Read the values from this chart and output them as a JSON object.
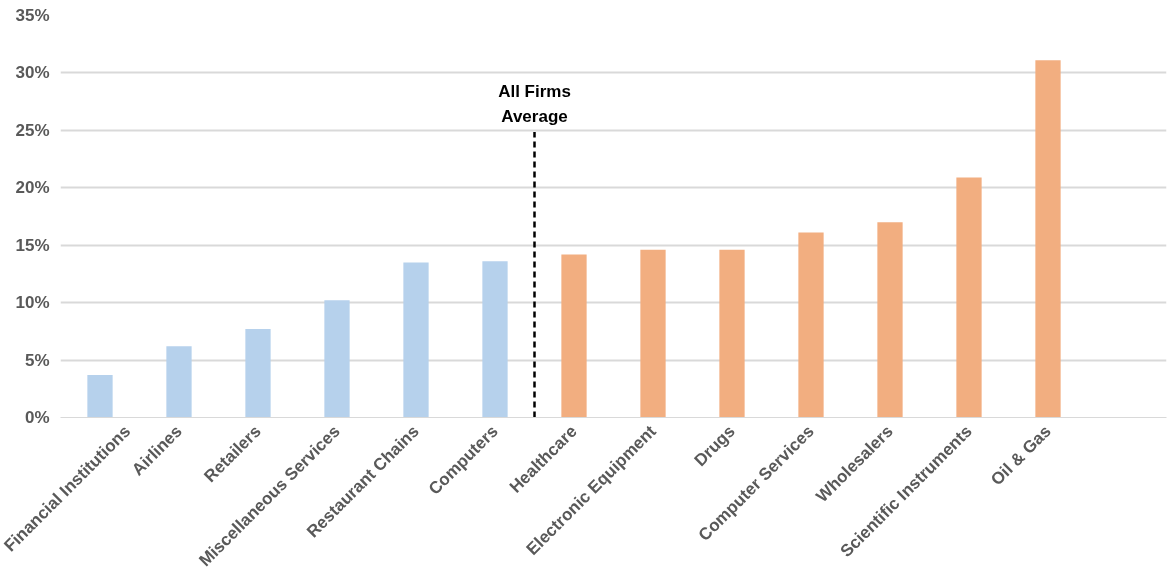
{
  "chart_data": {
    "type": "bar",
    "categories": [
      "Financial Institutions",
      "Airlines",
      "Retailers",
      "Miscellaneous Services",
      "Restaurant Chains",
      "Computers",
      "Healthcare",
      "Electronic Equipment",
      "Drugs",
      "Computer Services",
      "Wholesalers",
      "Scientific Instruments",
      "Oil & Gas",
      null
    ],
    "values": [
      3.7,
      6.2,
      7.7,
      10.2,
      13.5,
      13.6,
      14.2,
      14.6,
      14.6,
      16.1,
      17.0,
      20.9,
      31.1,
      null
    ],
    "colors": [
      "#b6d1ec",
      "#b6d1ec",
      "#b6d1ec",
      "#b6d1ec",
      "#b6d1ec",
      "#b6d1ec",
      "#f2ae80",
      "#f2ae80",
      "#f2ae80",
      "#f2ae80",
      "#f2ae80",
      "#f2ae80",
      "#f2ae80",
      "#f2ae80"
    ],
    "ylim": [
      0,
      35
    ],
    "yticks": [
      {
        "value": 0,
        "label": "0%"
      },
      {
        "value": 5,
        "label": "5%"
      },
      {
        "value": 10,
        "label": "10%"
      },
      {
        "value": 15,
        "label": "15%"
      },
      {
        "value": 20,
        "label": "20%"
      },
      {
        "value": 25,
        "label": "25%"
      },
      {
        "value": 30,
        "label": "30%"
      },
      {
        "value": 35,
        "label": "35%"
      }
    ],
    "grid": "y",
    "annotations": [
      "All Firms\nAverage"
    ]
  }
}
